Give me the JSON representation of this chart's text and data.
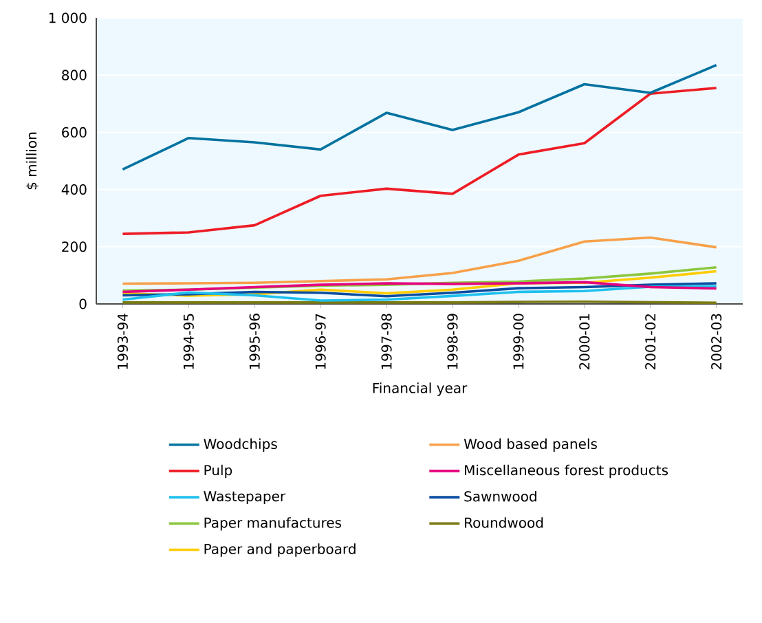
{
  "chart_data": {
    "type": "line",
    "xlabel": "Financial year",
    "ylabel": "$ million",
    "categories": [
      "1993-94",
      "1994-95",
      "1995-96",
      "1996-97",
      "1997-98",
      "1998-99",
      "1999-00",
      "2000-01",
      "2001-02",
      "2002-03"
    ],
    "ylim": [
      0,
      1000
    ],
    "yticks": [
      0,
      200,
      400,
      600,
      800,
      {
        "value": 1000,
        "label": "1 000"
      }
    ],
    "grid": "y",
    "legend": "bottom",
    "marker": "none",
    "line_style": "solid",
    "series": [
      {
        "name": "Woodchips",
        "color": "#0072a0",
        "values": [
          470,
          580,
          565,
          540,
          668,
          608,
          670,
          768,
          738,
          835
        ]
      },
      {
        "name": "Wood based panels",
        "color": "#f7a04a",
        "values": [
          71,
          72,
          74,
          80,
          86,
          108,
          151,
          218,
          232,
          198
        ]
      },
      {
        "name": "Pulp",
        "color": "#ee1c25",
        "values": [
          245,
          250,
          275,
          378,
          403,
          385,
          522,
          562,
          735,
          755
        ]
      },
      {
        "name": "Miscellaneous forest products",
        "color": "#e5007e",
        "values": [
          42,
          50,
          59,
          67,
          72,
          70,
          72,
          76,
          59,
          54
        ]
      },
      {
        "name": "Wastepaper",
        "color": "#1ec0ee",
        "values": [
          15,
          40,
          30,
          12,
          15,
          28,
          42,
          45,
          60,
          62
        ]
      },
      {
        "name": "Sawnwood",
        "color": "#0a4da0",
        "values": [
          30,
          34,
          42,
          39,
          27,
          39,
          55,
          59,
          67,
          72
        ]
      },
      {
        "name": "Paper manufactures",
        "color": "#8dc63f",
        "values": [
          47,
          50,
          57,
          64,
          67,
          74,
          78,
          89,
          106,
          128
        ]
      },
      {
        "name": "Roundwood",
        "color": "#7a7a14",
        "values": [
          5,
          5,
          5,
          5,
          5,
          5,
          7,
          8,
          6,
          4
        ]
      },
      {
        "name": "Paper and paperboard",
        "color": "#ffcc00",
        "values": [
          37,
          29,
          34,
          50,
          37,
          50,
          72,
          74,
          92,
          114
        ]
      }
    ]
  }
}
